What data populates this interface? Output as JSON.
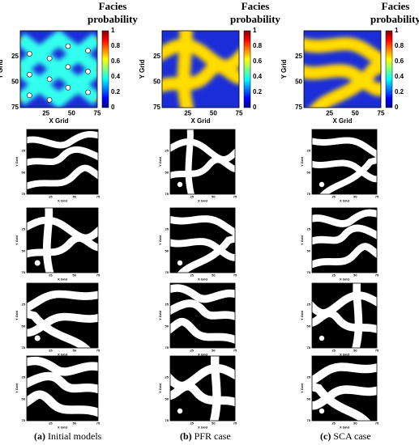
{
  "colorbar": {
    "title": "Facies probability",
    "ticks": [
      0,
      0.2,
      0.4,
      0.6,
      0.8,
      1
    ]
  },
  "axes": {
    "xlabel": "X Grid",
    "ylabel": "Y Grid",
    "xticks": [
      25,
      50,
      75
    ],
    "yticks": [
      25,
      50,
      75
    ]
  },
  "columns": [
    {
      "label": "(a)",
      "caption": "Initial models"
    },
    {
      "label": "(b)",
      "caption": "PFR case"
    },
    {
      "label": "(c)",
      "caption": "SCA case"
    }
  ]
}
